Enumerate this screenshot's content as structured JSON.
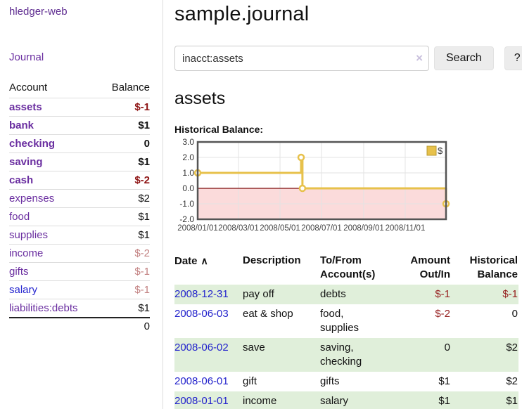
{
  "sidebar": {
    "brand": "hledger-web",
    "journal_label": "Journal",
    "accounts_table": {
      "header_account": "Account",
      "header_balance": "Balance",
      "rows": [
        {
          "name": "assets",
          "indent": 1,
          "bold": true,
          "balance": "$-1",
          "balance_style": "neg-strong"
        },
        {
          "name": "bank",
          "indent": 2,
          "bold": true,
          "balance": "$1",
          "balance_style": "pos"
        },
        {
          "name": "checking",
          "indent": 3,
          "bold": true,
          "balance": "0",
          "balance_style": "pos"
        },
        {
          "name": "saving",
          "indent": 3,
          "bold": true,
          "balance": "$1",
          "balance_style": "pos"
        },
        {
          "name": "cash",
          "indent": 2,
          "bold": true,
          "balance": "$-2",
          "balance_style": "neg-strong"
        },
        {
          "name": "expenses",
          "indent": 1,
          "bold": false,
          "balance": "$2",
          "balance_style": "pos"
        },
        {
          "name": "food",
          "indent": 2,
          "bold": false,
          "balance": "$1",
          "balance_style": "pos"
        },
        {
          "name": "supplies",
          "indent": 2,
          "bold": false,
          "balance": "$1",
          "balance_style": "pos"
        },
        {
          "name": "income",
          "indent": 1,
          "bold": false,
          "balance": "$-2",
          "balance_style": "neg-faint"
        },
        {
          "name": "gifts",
          "indent": 2,
          "bold": false,
          "balance": "$-1",
          "balance_style": "neg-faint"
        },
        {
          "name": "salary",
          "indent": 2,
          "bold": false,
          "balance": "$-1",
          "balance_style": "neg-faint",
          "link_color": "blue"
        },
        {
          "name": "liabilities:debts",
          "indent": 1,
          "bold": false,
          "balance": "$1",
          "balance_style": "pos"
        }
      ],
      "total": "0"
    }
  },
  "main": {
    "title": "sample.journal",
    "search": {
      "value": "inacct:assets",
      "clear_icon": "×",
      "search_button": "Search",
      "help_button": "?"
    },
    "account_heading": "assets",
    "chart_heading": "Historical Balance:"
  },
  "chart_data": {
    "type": "line",
    "step": true,
    "title": "Historical Balance",
    "x_range": [
      "2008-01-01",
      "2008-12-31"
    ],
    "y_range": [
      -2,
      3
    ],
    "y_ticks": [
      {
        "v": 3,
        "label": "3.0"
      },
      {
        "v": 2,
        "label": "2.0"
      },
      {
        "v": 1,
        "label": "1.0"
      },
      {
        "v": 0,
        "label": "0.0"
      },
      {
        "v": -1,
        "label": "-1.0"
      },
      {
        "v": -2,
        "label": "-2.0"
      }
    ],
    "x_ticks": [
      {
        "date": "2008-01-01",
        "label": "2008/01/01"
      },
      {
        "date": "2008-03-01",
        "label": "2008/03/01"
      },
      {
        "date": "2008-05-01",
        "label": "2008/05/01"
      },
      {
        "date": "2008-07-01",
        "label": "2008/07/01"
      },
      {
        "date": "2008-09-01",
        "label": "2008/09/01"
      },
      {
        "date": "2008-11-01",
        "label": "2008/11/01"
      }
    ],
    "series": [
      {
        "name": "$",
        "color": "#e7c14b",
        "marker_fill": "#ffffff",
        "points": [
          [
            "2008-01-01",
            1
          ],
          [
            "2008-06-01",
            2
          ],
          [
            "2008-06-03",
            0
          ],
          [
            "2008-12-31",
            -1
          ]
        ]
      }
    ],
    "legend": {
      "position": "top-right",
      "label": "$",
      "swatch_border": "#b89a30"
    },
    "grid": true,
    "grid_color": "#e3e3e3",
    "negative_region_fill": "#fbdbdb",
    "zero_line_color": "#7c0a0a",
    "border_color": "#555555"
  },
  "register_table": {
    "headers": [
      {
        "label": "Date",
        "sort_icon": "∧",
        "align": "left"
      },
      {
        "label": "Description",
        "align": "left"
      },
      {
        "label": "To/From Account(s)",
        "align": "left"
      },
      {
        "label": "Amount Out/In",
        "align": "right"
      },
      {
        "label": "Historical Balance",
        "align": "right"
      }
    ],
    "rows": [
      {
        "date": "2008-12-31",
        "description": "pay off",
        "accounts": "debts",
        "amount": "$-1",
        "amount_neg": true,
        "balance": "$-1",
        "balance_neg": true
      },
      {
        "date": "2008-06-03",
        "description": "eat & shop",
        "accounts": "food, supplies",
        "amount": "$-2",
        "amount_neg": true,
        "balance": "0",
        "balance_neg": false
      },
      {
        "date": "2008-06-02",
        "description": "save",
        "accounts": "saving, checking",
        "amount": "0",
        "amount_neg": false,
        "balance": "$2",
        "balance_neg": false
      },
      {
        "date": "2008-06-01",
        "description": "gift",
        "accounts": "gifts",
        "amount": "$1",
        "amount_neg": false,
        "balance": "$2",
        "balance_neg": false
      },
      {
        "date": "2008-01-01",
        "description": "income",
        "accounts": "salary",
        "amount": "$1",
        "amount_neg": false,
        "balance": "$1",
        "balance_neg": false
      }
    ]
  }
}
